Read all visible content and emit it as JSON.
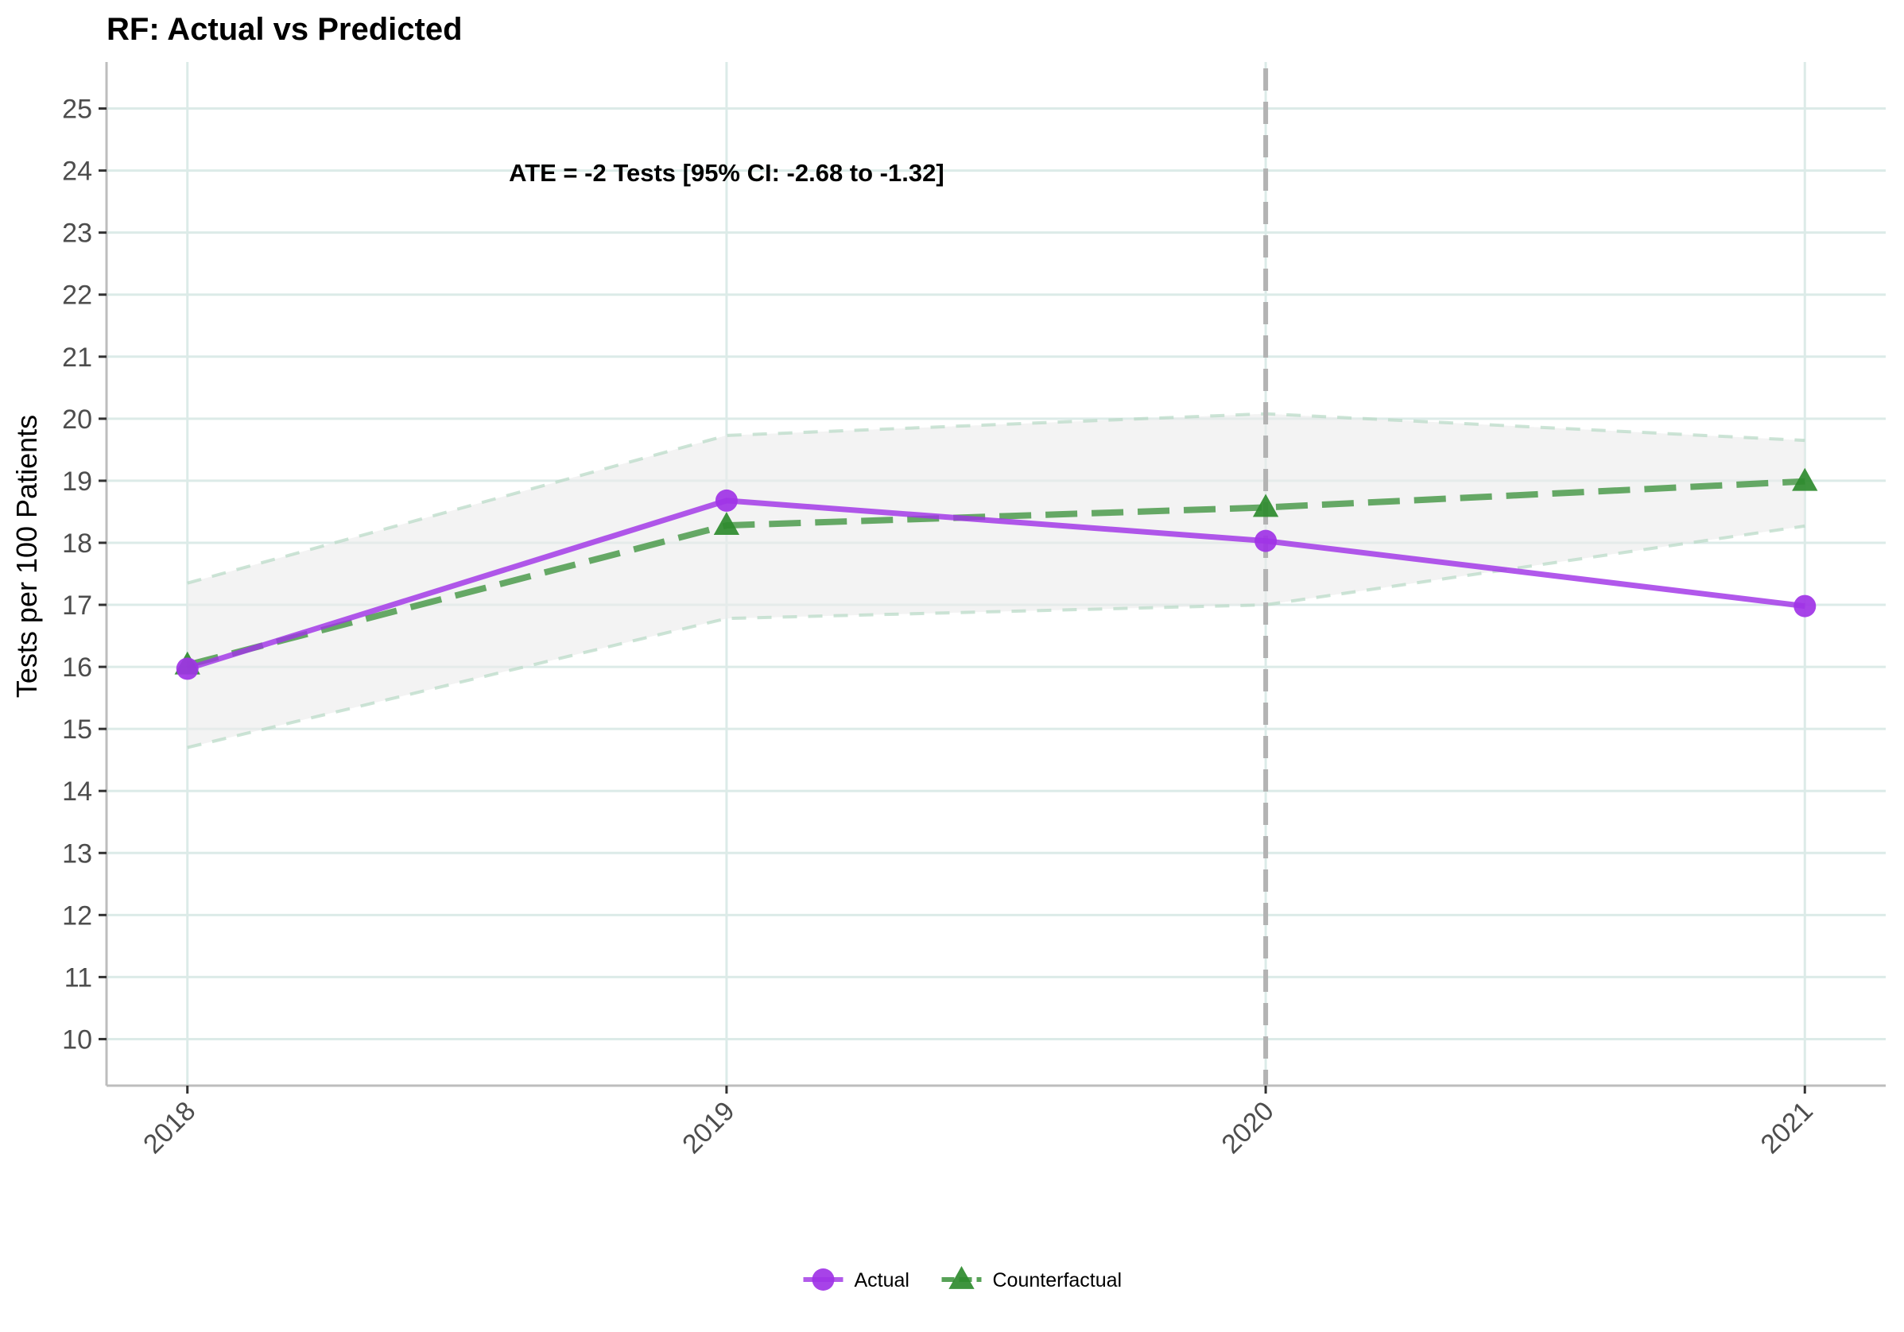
{
  "chart_data": {
    "type": "line",
    "title": "RF: Actual vs Predicted",
    "xlabel": "",
    "ylabel": "Tests per 100 Patients",
    "x": [
      2018,
      2019,
      2020,
      2021
    ],
    "x_tick_labels": [
      "2018",
      "2019",
      "2020",
      "2021"
    ],
    "y_ticks": [
      10,
      11,
      12,
      13,
      14,
      15,
      16,
      17,
      18,
      19,
      20,
      21,
      22,
      23,
      24,
      25
    ],
    "y_tick_labels": [
      "10",
      "11",
      "12",
      "13",
      "14",
      "15",
      "16",
      "17",
      "18",
      "19",
      "20",
      "21",
      "22",
      "23",
      "24",
      "25"
    ],
    "xlim": [
      2017.85,
      2021.15
    ],
    "ylim": [
      9.25,
      25.75
    ],
    "grid": true,
    "intervention_line_x": 2020,
    "series": [
      {
        "name": "Actual",
        "values": [
          15.97,
          18.68,
          18.03,
          16.98
        ],
        "color": "#a033e6",
        "line_style": "solid",
        "marker": "circle"
      },
      {
        "name": "Counterfactual",
        "values": [
          16.03,
          18.28,
          18.57,
          18.99
        ],
        "color": "#2e8b2e",
        "line_style": "dashed",
        "marker": "triangle"
      }
    ],
    "confidence_band": {
      "lower": [
        14.7,
        16.78,
        17.0,
        18.27
      ],
      "upper": [
        17.35,
        19.73,
        20.08,
        19.65
      ],
      "color": "#b7d9c4"
    },
    "annotation": {
      "text": "ATE = -2 Tests [95% CI: -2.68 to -1.32]",
      "x": 2019.0,
      "y": 23.97
    },
    "legend": {
      "position": "bottom",
      "entries": [
        "Actual",
        "Counterfactual"
      ]
    }
  }
}
